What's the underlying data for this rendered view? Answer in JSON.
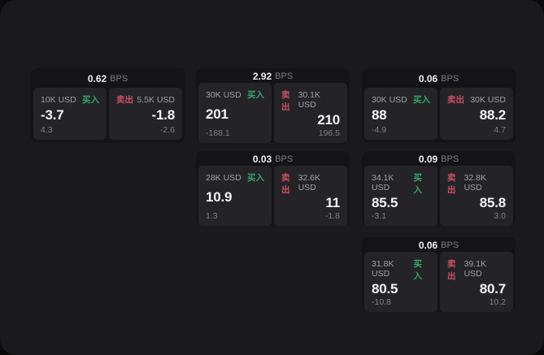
{
  "labels": {
    "buy": "买入",
    "sell": "卖出",
    "bps_unit": "BPS"
  },
  "colors": {
    "buy_accent": "#36a56a",
    "sell_accent": "#cc4f64",
    "window_bg": "#1a1a1c",
    "card_bg": "#141416",
    "panel_bg": "#242427"
  },
  "cards": [
    {
      "bps": "0.62",
      "buy": {
        "amount": "10K USD",
        "value": "-3.7",
        "delta": "4.3"
      },
      "sell": {
        "amount": "5.5K USD",
        "value": "-1.8",
        "delta": "-2.6"
      }
    },
    {
      "bps": "2.92",
      "buy": {
        "amount": "30K USD",
        "value": "201",
        "delta": "-188.1"
      },
      "sell": {
        "amount": "30.1K USD",
        "value": "210",
        "delta": "196.5"
      }
    },
    {
      "bps": "0.06",
      "buy": {
        "amount": "30K USD",
        "value": "88",
        "delta": "-4.9"
      },
      "sell": {
        "amount": "30K USD",
        "value": "88.2",
        "delta": "4.7"
      }
    },
    {
      "bps": "0.03",
      "buy": {
        "amount": "28K USD",
        "value": "10.9",
        "delta": "1.3"
      },
      "sell": {
        "amount": "32.6K USD",
        "value": "11",
        "delta": "-1.8"
      }
    },
    {
      "bps": "0.09",
      "buy": {
        "amount": "34.1K USD",
        "value": "85.5",
        "delta": "-3.1"
      },
      "sell": {
        "amount": "32.8K USD",
        "value": "85.8",
        "delta": "3.0"
      }
    },
    {
      "bps": "0.06",
      "buy": {
        "amount": "31.8K USD",
        "value": "80.5",
        "delta": "-10.8"
      },
      "sell": {
        "amount": "39.1K USD",
        "value": "80.7",
        "delta": "10.2"
      }
    }
  ]
}
